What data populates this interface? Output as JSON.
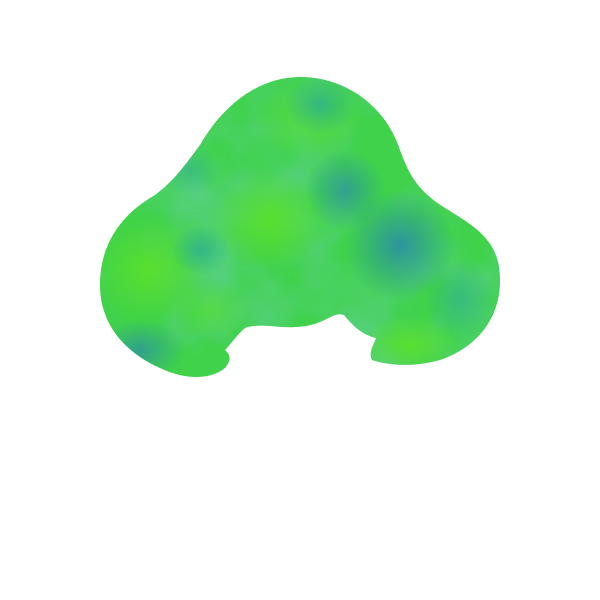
{
  "figure": {
    "shape": "blob",
    "colors": {
      "background": "#ffffff",
      "green_light": "#5ae02c",
      "green_mid": "#3fd24a",
      "teal": "#2fb18a",
      "teal_dark": "#2a8ea6"
    }
  }
}
